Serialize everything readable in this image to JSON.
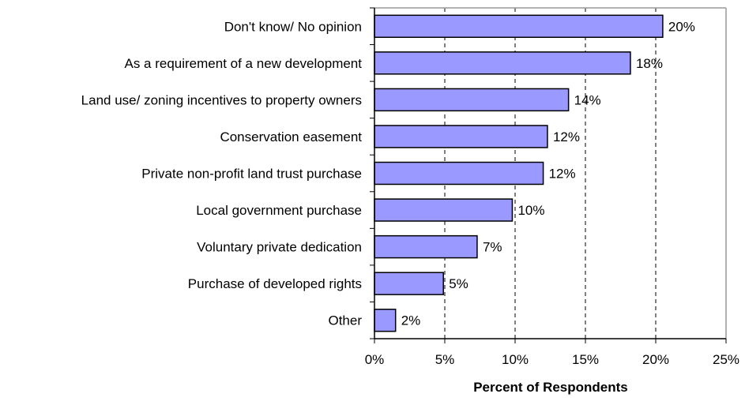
{
  "chart_data": {
    "type": "bar",
    "orientation": "horizontal",
    "categories": [
      "Don't know/ No opinion",
      "As a requirement of a new development",
      "Land use/ zoning incentives to property owners",
      "Conservation easement",
      "Private non-profit land trust purchase",
      "Local government purchase",
      "Voluntary private dedication",
      "Purchase of developed rights",
      "Other"
    ],
    "values": [
      20.5,
      18.2,
      13.8,
      12.3,
      12.0,
      9.8,
      7.3,
      4.9,
      1.5
    ],
    "data_labels": [
      "20%",
      "18%",
      "14%",
      "12%",
      "12%",
      "10%",
      "7%",
      "5%",
      "2%"
    ],
    "xlim": [
      0,
      25
    ],
    "x_ticks": [
      0,
      5,
      10,
      15,
      20,
      25
    ],
    "x_tick_labels": [
      "0%",
      "5%",
      "10%",
      "15%",
      "20%",
      "25%"
    ],
    "xlabel": "Percent of Respondents",
    "ylabel": "",
    "title": "",
    "grid": "vertical dashed",
    "legend": "none",
    "bar_color": "#9999ff",
    "bar_border_color": "#000000",
    "grid_color": "#000000"
  }
}
